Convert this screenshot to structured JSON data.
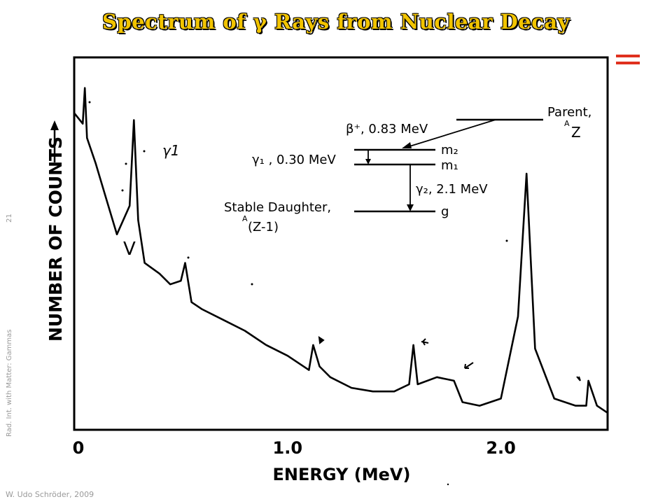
{
  "slide": {
    "title": "Spectrum of γ Rays from Nuclear Decay",
    "page_number": "21",
    "side_caption": "Rad. Int. with Matter: Gammas",
    "author": "W. Udo Schröder, 2009",
    "accent_color": "#e0301e",
    "title_color": "#f2c400"
  },
  "chart_data": {
    "type": "line",
    "xlabel": "ENERGY (MeV)",
    "ylabel": "NUMBER OF COUNTS",
    "x_ticks": [
      "0",
      "1.0",
      "2.0"
    ],
    "xlim": [
      0,
      2.5
    ],
    "peak_label": "γ1",
    "x": [
      0.0,
      0.04,
      0.05,
      0.06,
      0.1,
      0.15,
      0.2,
      0.26,
      0.28,
      0.3,
      0.33,
      0.4,
      0.45,
      0.5,
      0.52,
      0.55,
      0.6,
      0.7,
      0.8,
      0.9,
      1.0,
      1.1,
      1.12,
      1.15,
      1.2,
      1.3,
      1.4,
      1.5,
      1.57,
      1.59,
      1.61,
      1.7,
      1.78,
      1.82,
      1.9,
      2.0,
      2.08,
      2.12,
      2.16,
      2.25,
      2.35,
      2.4,
      2.41,
      2.45,
      2.5
    ],
    "y": [
      0.86,
      0.83,
      0.93,
      0.79,
      0.72,
      0.62,
      0.52,
      0.6,
      0.84,
      0.56,
      0.44,
      0.41,
      0.38,
      0.39,
      0.44,
      0.33,
      0.31,
      0.28,
      0.25,
      0.21,
      0.18,
      0.14,
      0.21,
      0.15,
      0.12,
      0.09,
      0.08,
      0.08,
      0.1,
      0.21,
      0.1,
      0.12,
      0.11,
      0.05,
      0.04,
      0.06,
      0.29,
      0.69,
      0.2,
      0.06,
      0.04,
      0.04,
      0.11,
      0.04,
      0.02
    ]
  },
  "decay_scheme": {
    "parent_label": "Parent,",
    "parent_nucleus": "Z",
    "parent_mass_super": "A",
    "beta_label": "β⁺, 0.83 MeV",
    "m2_label": "m₂",
    "m1_label": "m₁",
    "gamma1_label": "γ₁ ,  0.30 MeV",
    "gamma2_label": "γ₂,  2.1 MeV",
    "daughter_label": "Stable Daughter,",
    "daughter_nucleus": "(Z-1)",
    "daughter_mass_super": "A",
    "g_label": "g"
  },
  "annotations": {
    "v_mark": "V"
  }
}
